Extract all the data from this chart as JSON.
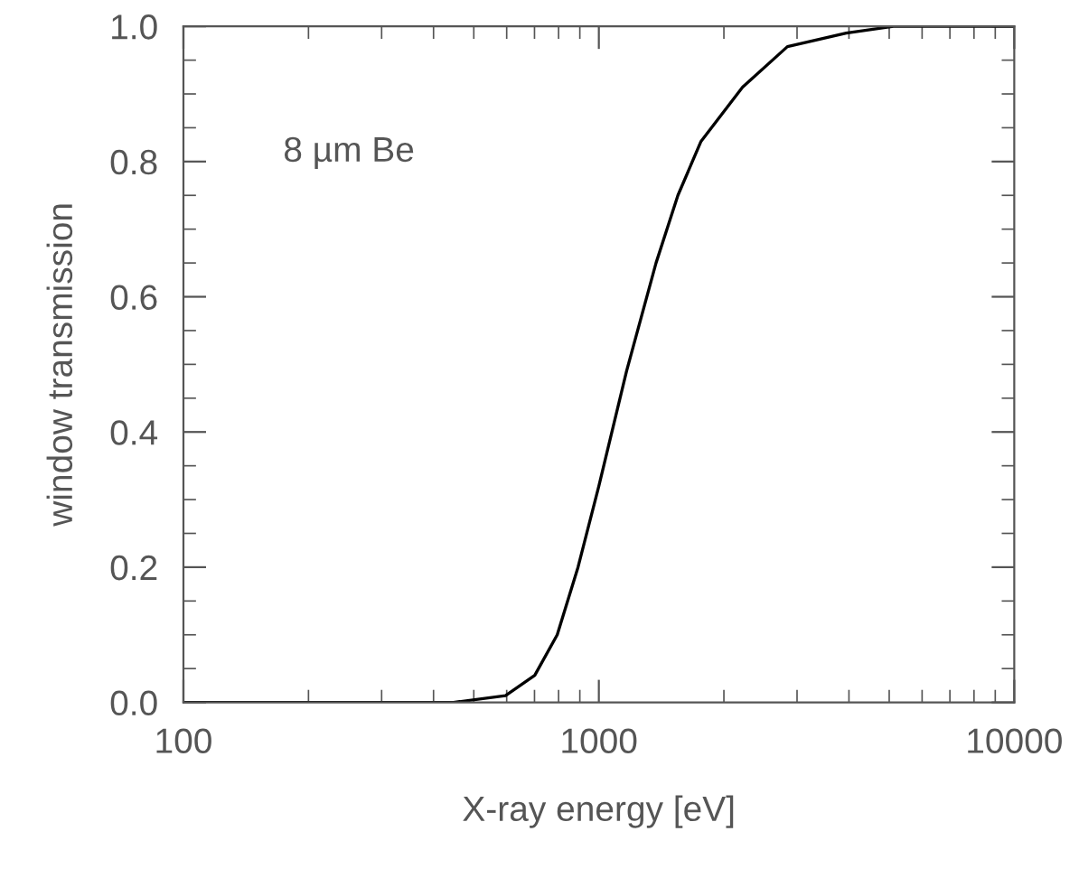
{
  "chart_data": {
    "type": "line",
    "xlabel": "X-ray energy [eV]",
    "ylabel": "window transmission",
    "annotations": [
      "8 µm Be"
    ],
    "series": [
      {
        "color": "#000000",
        "x": [
          100,
          447,
          596,
          701,
          794,
          891,
          1000,
          1166,
          1373,
          1550,
          1762,
          2218,
          2844,
          3940,
          5120,
          10000
        ],
        "values": [
          0,
          0,
          0.01,
          0.04,
          0.1,
          0.2,
          0.32,
          0.49,
          0.65,
          0.75,
          0.83,
          0.91,
          0.97,
          0.99,
          1.0,
          1.0
        ]
      }
    ],
    "log": "x",
    "xlim": [
      100,
      10000
    ],
    "xticks": [
      100,
      1000,
      10000
    ],
    "ylim": [
      0,
      1.0
    ],
    "yticks": [
      {
        "value": 0,
        "label": "0.0"
      },
      {
        "value": 0.2,
        "label": "0.2"
      },
      {
        "value": 0.4,
        "label": "0.4"
      },
      {
        "value": 0.6,
        "label": "0.6"
      },
      {
        "value": 0.8,
        "label": "0.8"
      },
      {
        "value": 1.0,
        "label": "1.0"
      }
    ],
    "grid": false,
    "legend": false,
    "marker": "none",
    "line_style": "solid"
  }
}
